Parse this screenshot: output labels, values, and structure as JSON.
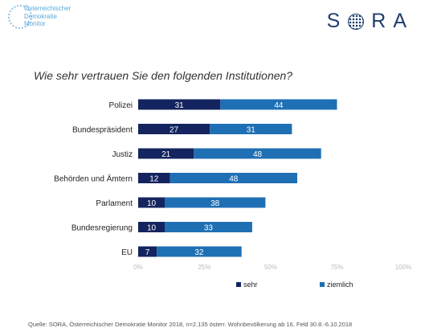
{
  "header": {
    "logo_left_lines": [
      "Österreichischer",
      "Demokratie",
      "Monitor"
    ],
    "logo_right_text_pre": "S",
    "logo_right_text_post": "RA"
  },
  "title": "Wie sehr vertrauen Sie den folgenden Institutionen?",
  "colors": {
    "sehr": "#14245e",
    "ziemlich": "#1f6fb4"
  },
  "chart_data": {
    "type": "bar",
    "orientation": "horizontal",
    "stacked": true,
    "categories": [
      "Polizei",
      "Bundespräsident",
      "Justiz",
      "Behörden und Ämtern",
      "Parlament",
      "Bundesregierung",
      "EU"
    ],
    "series": [
      {
        "name": "sehr",
        "values": [
          31,
          27,
          21,
          12,
          10,
          10,
          7
        ]
      },
      {
        "name": "ziemlich",
        "values": [
          44,
          31,
          48,
          48,
          38,
          33,
          32
        ]
      }
    ],
    "xlim": [
      0,
      100
    ],
    "xticks": [
      "0%",
      "25%",
      "50%",
      "75%",
      "100%"
    ],
    "legend_position": "bottom",
    "grid": false
  },
  "source": "Quelle: SORA, Österreichischer Demokratie Monitor 2018, n=2.135 österr. Wohnbevölkerung ab 16, Feld 30.8.-6.10.2018"
}
